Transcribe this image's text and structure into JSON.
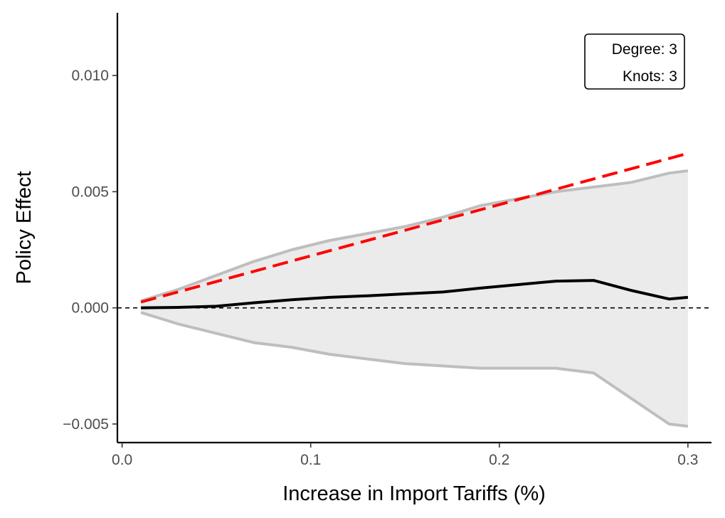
{
  "chart_data": {
    "type": "line",
    "title": "",
    "xlabel": "Increase in Import Tariffs (%)",
    "ylabel": "Policy Effect",
    "xlim": [
      -0.0025,
      0.3125
    ],
    "ylim": [
      -0.0058,
      0.0127
    ],
    "x_ticks": [
      0.0,
      0.1,
      0.2,
      0.3
    ],
    "x_tick_labels": [
      "0.0",
      "0.1",
      "0.2",
      "0.3"
    ],
    "y_ticks": [
      -0.005,
      0.0,
      0.005,
      0.01
    ],
    "y_tick_labels": [
      "−0.005",
      "0.000",
      "0.005",
      "0.010"
    ],
    "grid": false,
    "annotation": {
      "position": "top-right",
      "lines": [
        "Degree: 3",
        "Knots: 3"
      ]
    },
    "reference_line": {
      "y": 0,
      "style": "dashed",
      "color": "#000000"
    },
    "series": [
      {
        "role": "estimate",
        "style": "solid",
        "color": "#000000",
        "x": [
          0.01,
          0.03,
          0.05,
          0.07,
          0.09,
          0.11,
          0.13,
          0.15,
          0.17,
          0.19,
          0.21,
          0.23,
          0.25,
          0.27,
          0.29,
          0.3
        ],
        "y": [
          0.0,
          2e-05,
          7e-05,
          0.00022,
          0.00035,
          0.00045,
          0.00052,
          0.0006,
          0.00068,
          0.00085,
          0.001,
          0.00115,
          0.00118,
          0.00075,
          0.00038,
          0.00045
        ]
      },
      {
        "role": "upper-bound",
        "style": "solid",
        "color": "#bebebe",
        "x": [
          0.01,
          0.03,
          0.05,
          0.07,
          0.09,
          0.11,
          0.13,
          0.15,
          0.17,
          0.19,
          0.21,
          0.23,
          0.25,
          0.27,
          0.29,
          0.3
        ],
        "y": [
          0.0003,
          0.0008,
          0.0014,
          0.002,
          0.0025,
          0.0029,
          0.0032,
          0.0035,
          0.0039,
          0.0044,
          0.0047,
          0.005,
          0.0052,
          0.0054,
          0.0058,
          0.0059
        ]
      },
      {
        "role": "lower-bound",
        "style": "solid",
        "color": "#bebebe",
        "x": [
          0.01,
          0.03,
          0.05,
          0.07,
          0.09,
          0.11,
          0.13,
          0.15,
          0.17,
          0.19,
          0.21,
          0.23,
          0.25,
          0.27,
          0.29,
          0.3
        ],
        "y": [
          -0.0002,
          -0.0007,
          -0.0011,
          -0.0015,
          -0.0017,
          -0.002,
          -0.0022,
          -0.0024,
          -0.0025,
          -0.0026,
          -0.0026,
          -0.0026,
          -0.0028,
          -0.0039,
          -0.005,
          -0.0051
        ]
      },
      {
        "role": "linear-reference",
        "style": "dashed",
        "color": "#ff0000",
        "x": [
          0.01,
          0.3
        ],
        "y": [
          0.00025,
          0.00665
        ]
      }
    ],
    "band_fill": "#ebebeb"
  }
}
